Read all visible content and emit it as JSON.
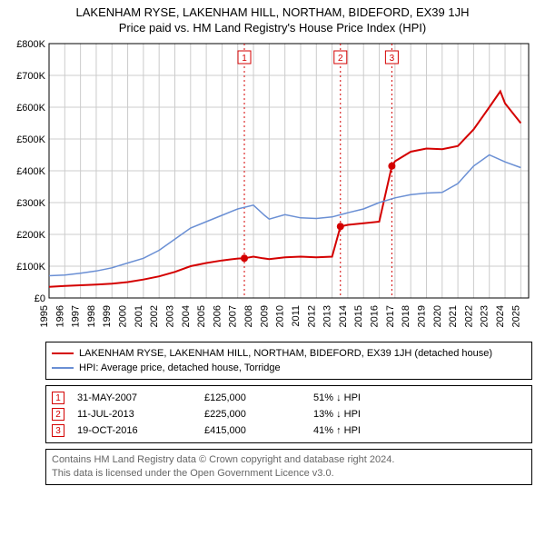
{
  "title_line1": "LAKENHAM RYSE, LAKENHAM HILL, NORTHAM, BIDEFORD, EX39 1JH",
  "title_line2": "Price paid vs. HM Land Registry's House Price Index (HPI)",
  "chart": {
    "type": "line",
    "background_color": "#ffffff",
    "grid_color": "#cccccc",
    "axis_color": "#000000",
    "xlim": [
      1995,
      2025.5
    ],
    "ylim": [
      0,
      800000
    ],
    "ytick_step": 100000,
    "yticks": [
      "£0",
      "£100K",
      "£200K",
      "£300K",
      "£400K",
      "£500K",
      "£600K",
      "£700K",
      "£800K"
    ],
    "xticks": [
      1995,
      1996,
      1997,
      1998,
      1999,
      2000,
      2001,
      2002,
      2003,
      2004,
      2005,
      2006,
      2007,
      2008,
      2009,
      2010,
      2011,
      2012,
      2013,
      2014,
      2015,
      2016,
      2017,
      2018,
      2019,
      2020,
      2021,
      2022,
      2023,
      2024,
      2025
    ],
    "series": [
      {
        "name": "price_paid",
        "color": "#d40000",
        "width": 2,
        "data": [
          [
            1995,
            35000
          ],
          [
            1996,
            38000
          ],
          [
            1997,
            40000
          ],
          [
            1998,
            42000
          ],
          [
            1999,
            45000
          ],
          [
            2000,
            50000
          ],
          [
            2001,
            58000
          ],
          [
            2002,
            68000
          ],
          [
            2003,
            82000
          ],
          [
            2004,
            100000
          ],
          [
            2005,
            110000
          ],
          [
            2006,
            118000
          ],
          [
            2007,
            124000
          ],
          [
            2007.42,
            125000
          ],
          [
            2008,
            130000
          ],
          [
            2008.6,
            125000
          ],
          [
            2009,
            122000
          ],
          [
            2010,
            128000
          ],
          [
            2011,
            130000
          ],
          [
            2012,
            128000
          ],
          [
            2013,
            130000
          ],
          [
            2013.53,
            225000
          ],
          [
            2014,
            230000
          ],
          [
            2015,
            235000
          ],
          [
            2016,
            240000
          ],
          [
            2016.8,
            415000
          ],
          [
            2017,
            430000
          ],
          [
            2018,
            460000
          ],
          [
            2019,
            470000
          ],
          [
            2020,
            468000
          ],
          [
            2021,
            478000
          ],
          [
            2022,
            530000
          ],
          [
            2023,
            600000
          ],
          [
            2023.7,
            650000
          ],
          [
            2024,
            612000
          ],
          [
            2025,
            550000
          ]
        ]
      },
      {
        "name": "hpi",
        "color": "#6a8fd4",
        "width": 1.5,
        "data": [
          [
            1995,
            70000
          ],
          [
            1996,
            72000
          ],
          [
            1997,
            78000
          ],
          [
            1998,
            85000
          ],
          [
            1999,
            95000
          ],
          [
            2000,
            110000
          ],
          [
            2001,
            125000
          ],
          [
            2002,
            150000
          ],
          [
            2003,
            185000
          ],
          [
            2004,
            220000
          ],
          [
            2005,
            240000
          ],
          [
            2006,
            260000
          ],
          [
            2007,
            280000
          ],
          [
            2008,
            292000
          ],
          [
            2008.7,
            260000
          ],
          [
            2009,
            248000
          ],
          [
            2010,
            262000
          ],
          [
            2011,
            252000
          ],
          [
            2012,
            250000
          ],
          [
            2013,
            255000
          ],
          [
            2014,
            268000
          ],
          [
            2015,
            280000
          ],
          [
            2016,
            300000
          ],
          [
            2017,
            315000
          ],
          [
            2018,
            325000
          ],
          [
            2019,
            330000
          ],
          [
            2020,
            332000
          ],
          [
            2021,
            360000
          ],
          [
            2022,
            415000
          ],
          [
            2023,
            450000
          ],
          [
            2024,
            428000
          ],
          [
            2025,
            410000
          ]
        ]
      }
    ],
    "event_markers": [
      {
        "num": "1",
        "x": 2007.42,
        "y": 125000
      },
      {
        "num": "2",
        "x": 2013.53,
        "y": 225000
      },
      {
        "num": "3",
        "x": 2016.8,
        "y": 415000
      }
    ]
  },
  "legend": [
    {
      "color": "#d40000",
      "label": "LAKENHAM RYSE, LAKENHAM HILL, NORTHAM, BIDEFORD, EX39 1JH (detached house)"
    },
    {
      "color": "#6a8fd4",
      "label": "HPI: Average price, detached house, Torridge"
    }
  ],
  "events_table": [
    {
      "num": "1",
      "date": "31-MAY-2007",
      "price": "£125,000",
      "diff": "51% ↓ HPI"
    },
    {
      "num": "2",
      "date": "11-JUL-2013",
      "price": "£225,000",
      "diff": "13% ↓ HPI"
    },
    {
      "num": "3",
      "date": "19-OCT-2016",
      "price": "£415,000",
      "diff": "41% ↑ HPI"
    }
  ],
  "footer": {
    "line1": "Contains HM Land Registry data © Crown copyright and database right 2024.",
    "line2": "This data is licensed under the Open Government Licence v3.0."
  }
}
